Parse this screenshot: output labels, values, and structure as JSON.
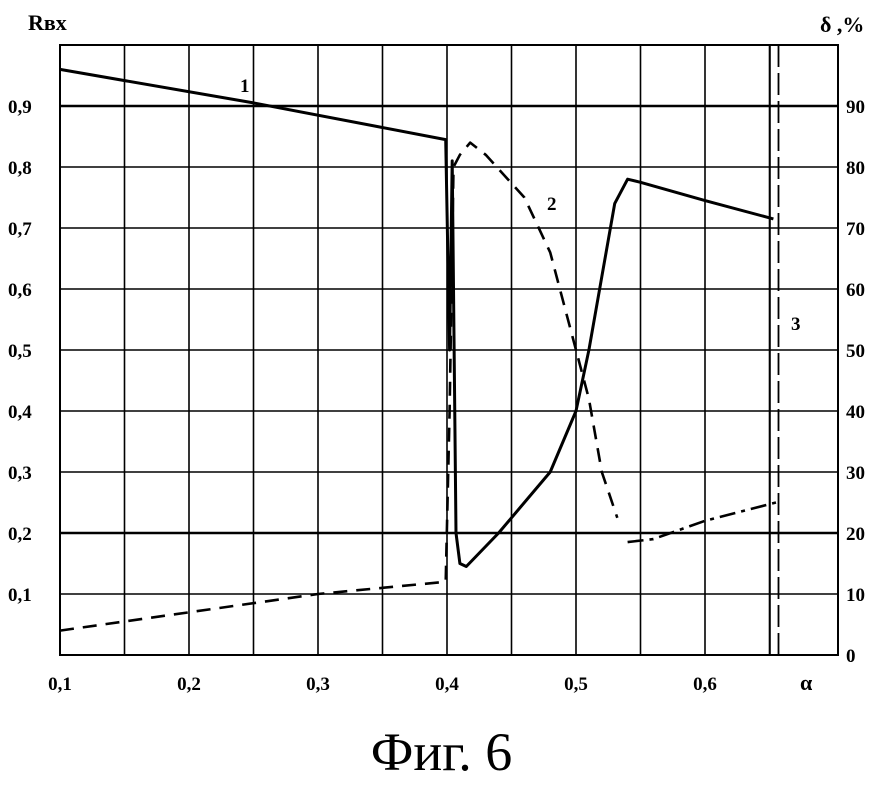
{
  "chart_data": {
    "type": "line",
    "title": "",
    "xlabel": "α",
    "ylabel_left": "Rвх",
    "ylabel_right": "δ ,%",
    "xlim": [
      0.1,
      0.66
    ],
    "ylim_left": [
      0,
      1.0
    ],
    "ylim_right": [
      0,
      100
    ],
    "grid": true,
    "x_ticks": [
      "0,1",
      "0,2",
      "0,3",
      "0,4",
      "0,5",
      "0,6"
    ],
    "x_tick_values": [
      0.1,
      0.2,
      0.3,
      0.4,
      0.5,
      0.6
    ],
    "y_ticks_left": [
      "0,1",
      "0,2",
      "0,3",
      "0,4",
      "0,5",
      "0,6",
      "0,7",
      "0,8",
      "0,9"
    ],
    "y_tick_values_left": [
      0.1,
      0.2,
      0.3,
      0.4,
      0.5,
      0.6,
      0.7,
      0.8,
      0.9
    ],
    "y_ticks_right": [
      "0",
      "10",
      "20",
      "30",
      "40",
      "50",
      "60",
      "70",
      "80",
      "90"
    ],
    "y_tick_values_right": [
      0,
      10,
      20,
      30,
      40,
      50,
      60,
      70,
      80,
      90
    ],
    "series": [
      {
        "name": "1",
        "axis": "left",
        "style": "solid",
        "points": [
          [
            0.1,
            0.96
          ],
          [
            0.25,
            0.905
          ],
          [
            0.399,
            0.845
          ],
          [
            0.402,
            0.5
          ],
          [
            0.404,
            0.81
          ],
          [
            0.407,
            0.2
          ],
          [
            0.41,
            0.15
          ],
          [
            0.415,
            0.145
          ],
          [
            0.44,
            0.2
          ],
          [
            0.48,
            0.3
          ],
          [
            0.5,
            0.4
          ],
          [
            0.51,
            0.5
          ],
          [
            0.52,
            0.62
          ],
          [
            0.53,
            0.74
          ],
          [
            0.54,
            0.78
          ],
          [
            0.55,
            0.775
          ],
          [
            0.6,
            0.745
          ],
          [
            0.653,
            0.715
          ]
        ]
      },
      {
        "name": "2",
        "axis": "right",
        "style": "dashed",
        "points": [
          [
            0.1,
            4
          ],
          [
            0.3,
            10
          ],
          [
            0.399,
            12
          ],
          [
            0.402,
            40
          ],
          [
            0.405,
            80
          ],
          [
            0.41,
            82
          ],
          [
            0.418,
            84
          ],
          [
            0.43,
            82
          ],
          [
            0.46,
            75
          ],
          [
            0.48,
            66
          ],
          [
            0.5,
            50
          ],
          [
            0.51,
            42
          ],
          [
            0.52,
            30
          ],
          [
            0.532,
            22.5
          ]
        ]
      },
      {
        "name": "",
        "axis": "right",
        "style": "dash-dot",
        "points": [
          [
            0.54,
            18.5
          ],
          [
            0.56,
            19
          ],
          [
            0.6,
            22
          ],
          [
            0.655,
            25
          ]
        ]
      },
      {
        "name": "3",
        "axis": "left",
        "style": "vertical-dashed",
        "points": [
          [
            0.657,
            0
          ],
          [
            0.657,
            1.0
          ]
        ]
      }
    ],
    "annotations": [
      "1",
      "2",
      "3"
    ]
  },
  "caption": "Фиг. 6"
}
